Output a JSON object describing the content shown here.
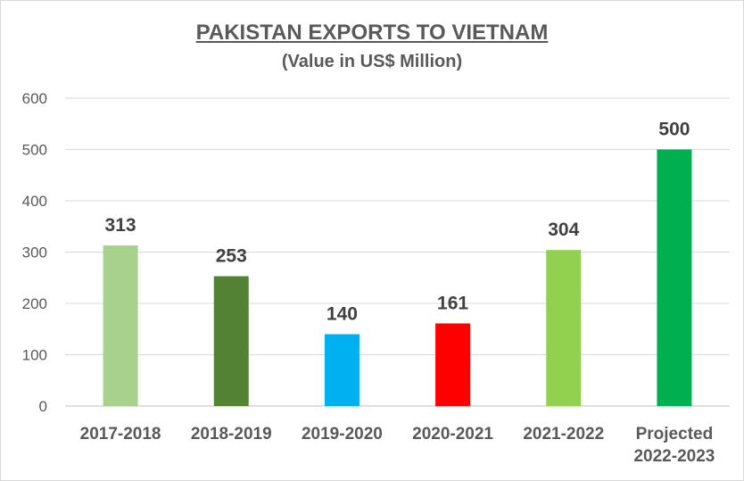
{
  "chart_data": {
    "type": "bar",
    "title": "PAKISTAN EXPORTS TO VIETNAM",
    "subtitle": "(Value in US$ Million)",
    "categories": [
      [
        "2017-2018"
      ],
      [
        "2018-2019"
      ],
      [
        "2019-2020"
      ],
      [
        "2020-2021"
      ],
      [
        "2021-2022"
      ],
      [
        "Projected",
        "2022-2023"
      ]
    ],
    "values": [
      313,
      253,
      140,
      161,
      304,
      500
    ],
    "bar_colors": [
      "#a9d18e",
      "#548235",
      "#00b0f0",
      "#ff0000",
      "#92d050",
      "#00b050"
    ],
    "ylim": [
      0,
      600
    ],
    "yticks": [
      0,
      100,
      200,
      300,
      400,
      500,
      600
    ],
    "grid": true,
    "data_labels": true,
    "legend": "none"
  }
}
